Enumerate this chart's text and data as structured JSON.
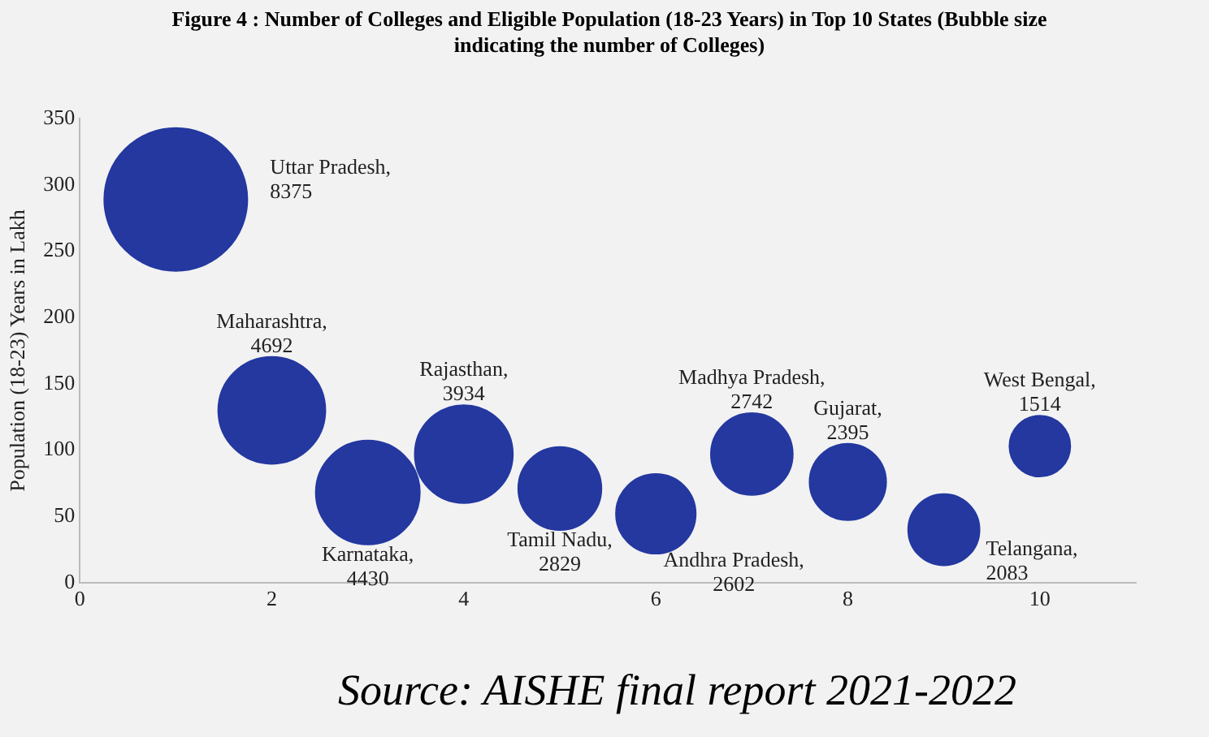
{
  "chart_data": {
    "type": "bubble",
    "title": "Figure 4 : Number of Colleges and Eligible Population (18-23 Years) in Top 10 States (Bubble size indicating the number of Colleges)",
    "ylabel": "Population (18-23) Years in Lakh",
    "series": [
      {
        "name": "Uttar Pradesh,",
        "color": "#2438a0",
        "x": [
          1
        ],
        "values": [
          289
        ],
        "sizes": [
          8375
        ],
        "value_labels": [
          "8375"
        ]
      },
      {
        "name": "Maharashtra,",
        "color": "#2438a0",
        "x": [
          2
        ],
        "values": [
          130
        ],
        "sizes": [
          4692
        ],
        "value_labels": [
          "4692"
        ]
      },
      {
        "name": "Karnataka,",
        "color": "#2438a0",
        "x": [
          3
        ],
        "values": [
          68
        ],
        "sizes": [
          4430
        ],
        "value_labels": [
          "4430"
        ]
      },
      {
        "name": "Rajasthan,",
        "color": "#2438a0",
        "x": [
          4
        ],
        "values": [
          97
        ],
        "sizes": [
          3934
        ],
        "value_labels": [
          "3934"
        ]
      },
      {
        "name": "Tamil Nadu,",
        "color": "#2438a0",
        "x": [
          5
        ],
        "values": [
          71
        ],
        "sizes": [
          2829
        ],
        "value_labels": [
          "2829"
        ]
      },
      {
        "name": "Andhra Pradesh,",
        "color": "#2438a0",
        "x": [
          6
        ],
        "values": [
          52
        ],
        "sizes": [
          2602
        ],
        "value_labels": [
          "2602"
        ]
      },
      {
        "name": "Madhya Pradesh,",
        "color": "#2438a0",
        "x": [
          7
        ],
        "values": [
          97
        ],
        "sizes": [
          2742
        ],
        "value_labels": [
          "2742"
        ]
      },
      {
        "name": "Gujarat,",
        "color": "#2438a0",
        "x": [
          8
        ],
        "values": [
          76
        ],
        "sizes": [
          2395
        ],
        "value_labels": [
          "2395"
        ]
      },
      {
        "name": "Telangana,",
        "color": "#2438a0",
        "x": [
          9
        ],
        "values": [
          40
        ],
        "sizes": [
          2083
        ],
        "value_labels": [
          "2083"
        ]
      },
      {
        "name": "West Bengal,",
        "color": "#2438a0",
        "x": [
          10
        ],
        "values": [
          103
        ],
        "sizes": [
          1514
        ],
        "value_labels": [
          "1514"
        ]
      }
    ],
    "xlim": [
      0,
      11
    ],
    "xticks": [
      0,
      2,
      4,
      6,
      8,
      10
    ],
    "ylim": [
      0,
      350
    ],
    "yticks": [
      0,
      50,
      100,
      150,
      200,
      250,
      300,
      350
    ],
    "grid": false,
    "legend": false,
    "annotations": [
      "Source: AISHE final report 2021-2022"
    ]
  }
}
